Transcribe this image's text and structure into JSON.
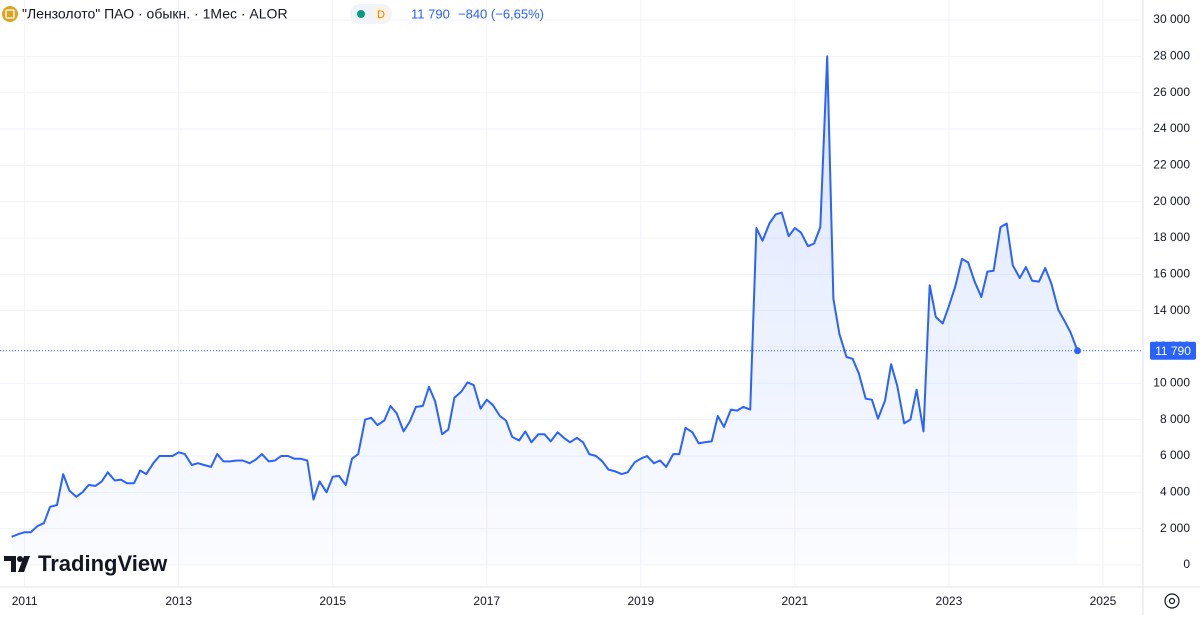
{
  "header": {
    "title": "\"Лензолото\" ПАО · обыкн. · 1Мес · ALOR",
    "interval_badge": "D",
    "last": "11 790",
    "change": "−840 (−6,65%)",
    "logo": "TradingView"
  },
  "chart_data": {
    "type": "area",
    "color": "#2962ff",
    "grid": true,
    "xlim": [
      2010.68,
      2025.52
    ],
    "xticks": [
      2011,
      2013,
      2015,
      2017,
      2019,
      2021,
      2023,
      2025
    ],
    "ylim": [
      -1215,
      31105
    ],
    "yticks": [
      0,
      {
        "value": 2000,
        "label": "2 000"
      },
      {
        "value": 4000,
        "label": "4 000"
      },
      {
        "value": 6000,
        "label": "6 000"
      },
      {
        "value": 8000,
        "label": "8 000"
      },
      {
        "value": 10000,
        "label": "10 000"
      },
      {
        "value": 12000,
        "label": "12 000"
      },
      {
        "value": 14000,
        "label": "14 000"
      },
      {
        "value": 16000,
        "label": "16 000"
      },
      {
        "value": 18000,
        "label": "18 000"
      },
      {
        "value": 20000,
        "label": "20 000"
      },
      {
        "value": 22000,
        "label": "22 000"
      },
      {
        "value": 24000,
        "label": "24 000"
      },
      {
        "value": 26000,
        "label": "26 000"
      },
      {
        "value": 28000,
        "label": "28 000"
      },
      {
        "value": 30000,
        "label": "30 000"
      }
    ],
    "x": [
      2010.83,
      2010.92,
      2011.0,
      2011.08,
      2011.17,
      2011.25,
      2011.33,
      2011.42,
      2011.5,
      2011.58,
      2011.67,
      2011.75,
      2011.83,
      2011.92,
      2012.0,
      2012.08,
      2012.17,
      2012.25,
      2012.33,
      2012.42,
      2012.5,
      2012.58,
      2012.67,
      2012.75,
      2012.83,
      2012.92,
      2013.0,
      2013.08,
      2013.17,
      2013.25,
      2013.33,
      2013.42,
      2013.5,
      2013.58,
      2013.67,
      2013.75,
      2013.83,
      2013.92,
      2014.0,
      2014.08,
      2014.17,
      2014.25,
      2014.33,
      2014.42,
      2014.5,
      2014.58,
      2014.67,
      2014.75,
      2014.83,
      2014.92,
      2015.0,
      2015.08,
      2015.17,
      2015.25,
      2015.33,
      2015.42,
      2015.5,
      2015.58,
      2015.67,
      2015.75,
      2015.83,
      2015.92,
      2016.0,
      2016.08,
      2016.17,
      2016.25,
      2016.33,
      2016.42,
      2016.5,
      2016.58,
      2016.67,
      2016.75,
      2016.83,
      2016.92,
      2017.0,
      2017.08,
      2017.17,
      2017.25,
      2017.33,
      2017.42,
      2017.5,
      2017.58,
      2017.67,
      2017.75,
      2017.83,
      2017.92,
      2018.0,
      2018.08,
      2018.17,
      2018.25,
      2018.33,
      2018.42,
      2018.5,
      2018.58,
      2018.67,
      2018.75,
      2018.83,
      2018.92,
      2019.0,
      2019.08,
      2019.17,
      2019.25,
      2019.33,
      2019.42,
      2019.5,
      2019.58,
      2019.67,
      2019.75,
      2019.83,
      2019.92,
      2020.0,
      2020.08,
      2020.17,
      2020.25,
      2020.33,
      2020.42,
      2020.5,
      2020.58,
      2020.67,
      2020.75,
      2020.83,
      2020.92,
      2021.0,
      2021.08,
      2021.17,
      2021.25,
      2021.33,
      2021.42,
      2021.5,
      2021.58,
      2021.67,
      2021.75,
      2021.83,
      2021.92,
      2022.0,
      2022.08,
      2022.17,
      2022.25,
      2022.33,
      2022.42,
      2022.5,
      2022.58,
      2022.67,
      2022.75,
      2022.83,
      2022.92,
      2023.0,
      2023.08,
      2023.17,
      2023.25,
      2023.33,
      2023.42,
      2023.5,
      2023.58,
      2023.67,
      2023.75,
      2023.83,
      2023.92,
      2024.0,
      2024.08,
      2024.17,
      2024.25,
      2024.33,
      2024.42,
      2024.5,
      2024.58,
      2024.67
    ],
    "series": [
      {
        "color": "#2962ff",
        "values": [
          1550,
          1700,
          1800,
          1800,
          2150,
          2300,
          3200,
          3300,
          5000,
          4100,
          3750,
          4000,
          4400,
          4350,
          4600,
          5100,
          4650,
          4700,
          4500,
          4500,
          5200,
          5000,
          5600,
          6000,
          6000,
          6000,
          6200,
          6100,
          5500,
          5600,
          5500,
          5400,
          6100,
          5700,
          5700,
          5750,
          5750,
          5600,
          5800,
          6100,
          5700,
          5750,
          6000,
          6000,
          5850,
          5850,
          5750,
          3600,
          4600,
          4000,
          4850,
          4900,
          4400,
          5850,
          6100,
          8000,
          8100,
          7700,
          7950,
          8750,
          8350,
          7350,
          7900,
          8700,
          8750,
          9800,
          9000,
          7200,
          7450,
          9200,
          9550,
          10050,
          9900,
          8600,
          9100,
          8800,
          8200,
          7950,
          7050,
          6850,
          7350,
          6750,
          7200,
          7200,
          6800,
          7300,
          7000,
          6750,
          7000,
          6750,
          6100,
          6000,
          5700,
          5250,
          5150,
          5000,
          5100,
          5650,
          5850,
          6000,
          5600,
          5750,
          5400,
          6100,
          6100,
          7550,
          7300,
          6700,
          6750,
          6800,
          8200,
          7600,
          8550,
          8500,
          8700,
          8550,
          18550,
          17850,
          18800,
          19300,
          19400,
          18100,
          18550,
          18300,
          17550,
          17700,
          18600,
          28000,
          14650,
          12700,
          11450,
          11350,
          10550,
          9150,
          9100,
          8050,
          9050,
          11050,
          9850,
          7800,
          8000,
          9650,
          7350,
          15400,
          13650,
          13300,
          14250,
          15300,
          16850,
          16650,
          15650,
          14750,
          16150,
          16200,
          18600,
          18800,
          16500,
          15800,
          16400,
          15650,
          15600,
          16350,
          15500,
          14050,
          13450,
          12800,
          11790
        ]
      }
    ]
  }
}
